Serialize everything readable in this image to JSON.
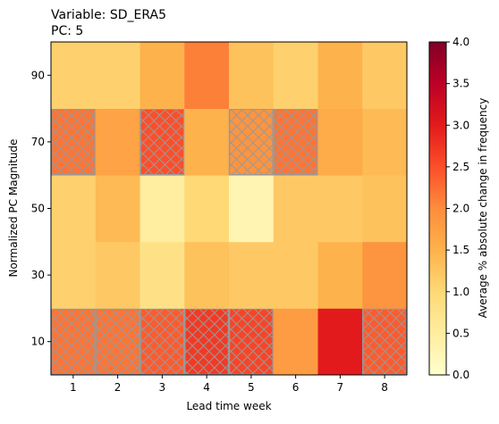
{
  "chart_data": {
    "type": "heatmap",
    "title_lines": [
      "Variable: SD_ERA5",
      "PC: 5"
    ],
    "xlabel": "Lead time week",
    "ylabel": "Normalized PC Magnitude",
    "x_categories": [
      "1",
      "2",
      "3",
      "4",
      "5",
      "6",
      "7",
      "8"
    ],
    "y_categories": [
      "10",
      "30",
      "50",
      "70",
      "90"
    ],
    "values": [
      [
        2.2,
        2.2,
        2.4,
        2.7,
        2.6,
        1.8,
        3.0,
        2.4
      ],
      [
        1.1,
        1.2,
        0.8,
        1.3,
        1.2,
        1.2,
        1.5,
        1.9
      ],
      [
        1.1,
        1.4,
        0.5,
        1.0,
        0.3,
        1.2,
        1.2,
        1.3
      ],
      [
        2.2,
        1.7,
        2.5,
        1.5,
        1.9,
        2.2,
        1.6,
        1.4
      ],
      [
        1.1,
        1.1,
        1.5,
        2.1,
        1.3,
        1.1,
        1.5,
        1.2
      ]
    ],
    "hatched": [
      [
        true,
        true,
        true,
        true,
        true,
        false,
        false,
        true
      ],
      [
        false,
        false,
        false,
        false,
        false,
        false,
        false,
        false
      ],
      [
        false,
        false,
        false,
        false,
        false,
        false,
        false,
        false
      ],
      [
        true,
        false,
        true,
        false,
        true,
        true,
        false,
        false
      ],
      [
        false,
        false,
        false,
        false,
        false,
        false,
        false,
        false
      ]
    ],
    "colorbar": {
      "label": "Average % absolute change in frequency",
      "range": [
        0,
        4
      ],
      "ticks": [
        "0.0",
        "0.5",
        "1.0",
        "1.5",
        "2.0",
        "2.5",
        "3.0",
        "3.5",
        "4.0"
      ],
      "colormap": "YlOrRd"
    }
  }
}
